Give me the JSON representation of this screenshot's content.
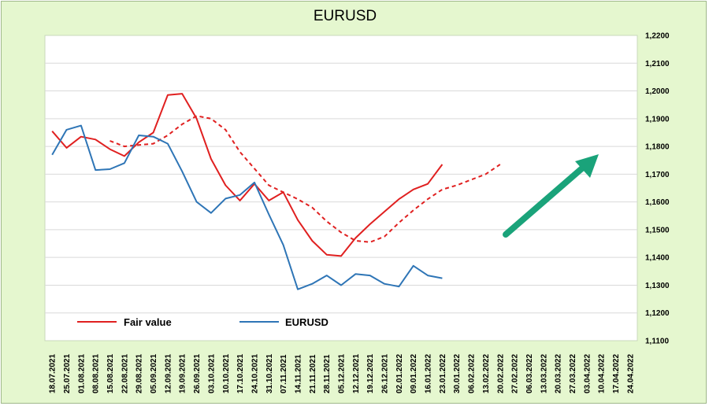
{
  "chart_data": {
    "type": "line",
    "title": "EURUSD",
    "ylim": [
      1.11,
      1.22
    ],
    "y_ticks": [
      "1,1100",
      "1,1200",
      "1,1300",
      "1,1400",
      "1,1500",
      "1,1600",
      "1,1700",
      "1,1800",
      "1,1900",
      "1,2000",
      "1,2100",
      "1,2200"
    ],
    "y_tick_values": [
      1.11,
      1.12,
      1.13,
      1.14,
      1.15,
      1.16,
      1.17,
      1.18,
      1.19,
      1.2,
      1.21,
      1.22
    ],
    "categories": [
      "18.07.2021",
      "25.07.2021",
      "01.08.2021",
      "08.08.2021",
      "15.08.2021",
      "22.08.2021",
      "29.08.2021",
      "05.09.2021",
      "12.09.2021",
      "19.09.2021",
      "26.09.2021",
      "03.10.2021",
      "10.10.2021",
      "17.10.2021",
      "24.10.2021",
      "31.10.2021",
      "07.11.2021",
      "14.11.2021",
      "21.11.2021",
      "28.11.2021",
      "05.12.2021",
      "12.12.2021",
      "19.12.2021",
      "26.12.2021",
      "02.01.2022",
      "09.01.2022",
      "16.01.2022",
      "23.01.2022",
      "30.01.2022",
      "06.02.2022",
      "13.02.2022",
      "20.02.2022",
      "27.02.2022",
      "06.03.2022",
      "13.03.2022",
      "20.03.2022",
      "27.03.2022",
      "03.04.2022",
      "10.04.2022",
      "17.04.2022",
      "24.04.2022"
    ],
    "grid": true,
    "legend_position": "bottom-left",
    "series": [
      {
        "name": "Fair value",
        "color": "#e02020",
        "style": "solid",
        "values": [
          1.1855,
          1.1795,
          1.1835,
          1.1825,
          1.179,
          1.1765,
          1.1815,
          1.185,
          1.1985,
          1.199,
          1.19,
          1.1755,
          1.166,
          1.1605,
          1.1665,
          1.1605,
          1.1635,
          1.1535,
          1.146,
          1.141,
          1.1405,
          1.147,
          1.152,
          1.1565,
          1.161,
          1.1645,
          1.1665,
          1.1735,
          null,
          null,
          null,
          null,
          null,
          null,
          null,
          null,
          null,
          null,
          null,
          null,
          null
        ]
      },
      {
        "name": "",
        "color": "#e02020",
        "style": "dashed",
        "values": [
          null,
          null,
          null,
          null,
          1.182,
          1.18,
          1.1805,
          1.181,
          1.184,
          1.188,
          1.191,
          1.19,
          1.186,
          1.178,
          1.172,
          1.166,
          1.1635,
          1.161,
          1.158,
          1.153,
          1.149,
          1.146,
          1.1455,
          1.1475,
          1.1525,
          1.157,
          1.161,
          1.1645,
          1.166,
          1.168,
          1.17,
          1.1735,
          null,
          null,
          null,
          null,
          null,
          null,
          null,
          null,
          null
        ]
      },
      {
        "name": "EURUSD",
        "color": "#2e75b6",
        "style": "solid",
        "values": [
          1.177,
          1.186,
          1.1875,
          1.1715,
          1.1718,
          1.174,
          1.184,
          1.1835,
          1.181,
          1.171,
          1.16,
          1.156,
          1.1612,
          1.1625,
          1.167,
          1.1555,
          1.1445,
          1.1285,
          1.1305,
          1.1335,
          1.13,
          1.134,
          1.1335,
          1.1305,
          1.1295,
          1.137,
          1.1335,
          1.1325,
          null,
          null,
          null,
          null,
          null,
          null,
          null,
          null,
          null,
          null,
          null,
          null,
          null
        ]
      }
    ],
    "arrow_color": "#1aa37a"
  }
}
